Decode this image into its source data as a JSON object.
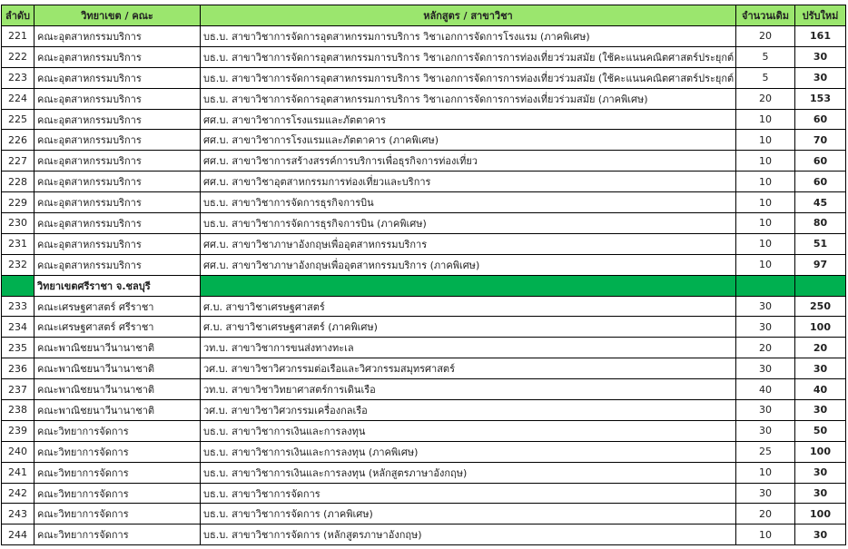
{
  "colors": {
    "header_bg": "#9BE66E",
    "section_bg": "#00B050"
  },
  "headers": [
    "ลำดับ",
    "วิทยาเขต / คณะ",
    "หลักสูตร / สาขาวิชา",
    "จำนวนเดิม",
    "ปรับใหม่"
  ],
  "rows_a": [
    {
      "no": "221",
      "faculty": "คณะอุตสาหกรรมบริการ",
      "program": "บธ.บ. สาขาวิชาการจัดการอุตสาหกรรมการบริการ วิชาเอกการจัดการโรงแรม (ภาคพิเศษ)",
      "old": "20",
      "new": "161"
    },
    {
      "no": "222",
      "faculty": "คณะอุตสาหกรรมบริการ",
      "program": "บธ.บ. สาขาวิชาการจัดการอุตสาหกรรมการบริการ วิชาเอกการจัดการการท่องเที่ยวร่วมสมัย (ใช้คะแนนคณิตศาสตร์ประยุกต์ 1)",
      "old": "5",
      "new": "30"
    },
    {
      "no": "223",
      "faculty": "คณะอุตสาหกรรมบริการ",
      "program": "บธ.บ. สาขาวิชาการจัดการอุตสาหกรรมการบริการ วิชาเอกการจัดการการท่องเที่ยวร่วมสมัย (ใช้คะแนนคณิตศาสตร์ประยุกต์ 2)",
      "old": "5",
      "new": "30"
    },
    {
      "no": "224",
      "faculty": "คณะอุตสาหกรรมบริการ",
      "program": "บธ.บ. สาขาวิชาการจัดการอุตสาหกรรมการบริการ วิชาเอกการจัดการการท่องเที่ยวร่วมสมัย (ภาคพิเศษ)",
      "old": "20",
      "new": "153"
    },
    {
      "no": "225",
      "faculty": "คณะอุตสาหกรรมบริการ",
      "program": "ศศ.บ. สาขาวิชาการโรงแรมและภัตตาคาร",
      "old": "10",
      "new": "60"
    },
    {
      "no": "226",
      "faculty": "คณะอุตสาหกรรมบริการ",
      "program": "ศศ.บ. สาขาวิชาการโรงแรมและภัตตาคาร (ภาคพิเศษ)",
      "old": "10",
      "new": "70"
    },
    {
      "no": "227",
      "faculty": "คณะอุตสาหกรรมบริการ",
      "program": "ศศ.บ. สาขาวิชาการสร้างสรรค์การบริการเพื่อธุรกิจการท่องเที่ยว",
      "old": "10",
      "new": "60"
    },
    {
      "no": "228",
      "faculty": "คณะอุตสาหกรรมบริการ",
      "program": "ศศ.บ. สาขาวิชาอุตสาหกรรมการท่องเที่ยวและบริการ",
      "old": "10",
      "new": "60"
    },
    {
      "no": "229",
      "faculty": "คณะอุตสาหกรรมบริการ",
      "program": "บธ.บ. สาขาวิชาการจัดการธุรกิจการบิน",
      "old": "10",
      "new": "45"
    },
    {
      "no": "230",
      "faculty": "คณะอุตสาหกรรมบริการ",
      "program": "บธ.บ. สาขาวิชาการจัดการธุรกิจการบิน (ภาคพิเศษ)",
      "old": "10",
      "new": "80"
    },
    {
      "no": "231",
      "faculty": "คณะอุตสาหกรรมบริการ",
      "program": "ศศ.บ. สาขาวิชาภาษาอังกฤษเพื่ออุตสาหกรรมบริการ",
      "old": "10",
      "new": "51"
    },
    {
      "no": "232",
      "faculty": "คณะอุตสาหกรรมบริการ",
      "program": "ศศ.บ. สาขาวิชาภาษาอังกฤษเพื่ออุตสาหกรรมบริการ (ภาคพิเศษ)",
      "old": "10",
      "new": "97"
    }
  ],
  "section": {
    "label": "วิทยาเขตศรีราชา จ.ชลบุรี"
  },
  "rows_b": [
    {
      "no": "233",
      "faculty": "คณะเศรษฐศาสตร์ ศรีราชา",
      "program": "ศ.บ. สาขาวิชาเศรษฐศาสตร์",
      "old": "30",
      "new": "250"
    },
    {
      "no": "234",
      "faculty": "คณะเศรษฐศาสตร์ ศรีราชา",
      "program": "ศ.บ. สาขาวิชาเศรษฐศาสตร์ (ภาคพิเศษ)",
      "old": "30",
      "new": "100"
    },
    {
      "no": "235",
      "faculty": "คณะพาณิชยนาวีนานาชาติ",
      "program": "วท.บ. สาขาวิชาการขนส่งทางทะเล",
      "old": "20",
      "new": "20"
    },
    {
      "no": "236",
      "faculty": "คณะพาณิชยนาวีนานาชาติ",
      "program": "วศ.บ. สาขาวิชาวิศวกรรมต่อเรือและวิศวกรรมสมุทรศาสตร์",
      "old": "30",
      "new": "30"
    },
    {
      "no": "237",
      "faculty": "คณะพาณิชยนาวีนานาชาติ",
      "program": "วท.บ. สาขาวิชาวิทยาศาสตร์การเดินเรือ",
      "old": "40",
      "new": "40"
    },
    {
      "no": "238",
      "faculty": "คณะพาณิชยนาวีนานาชาติ",
      "program": "วศ.บ. สาขาวิชาวิศวกรรมเครื่องกลเรือ",
      "old": "30",
      "new": "30"
    },
    {
      "no": "239",
      "faculty": "คณะวิทยาการจัดการ",
      "program": "บธ.บ. สาขาวิชาการเงินและการลงทุน",
      "old": "30",
      "new": "50"
    },
    {
      "no": "240",
      "faculty": "คณะวิทยาการจัดการ",
      "program": "บธ.บ. สาขาวิชาการเงินและการลงทุน (ภาคพิเศษ)",
      "old": "25",
      "new": "100"
    },
    {
      "no": "241",
      "faculty": "คณะวิทยาการจัดการ",
      "program": "บธ.บ. สาขาวิชาการเงินและการลงทุน (หลักสูตรภาษาอังกฤษ)",
      "old": "10",
      "new": "30"
    },
    {
      "no": "242",
      "faculty": "คณะวิทยาการจัดการ",
      "program": "บธ.บ. สาขาวิชาการจัดการ",
      "old": "30",
      "new": "30"
    },
    {
      "no": "243",
      "faculty": "คณะวิทยาการจัดการ",
      "program": "บธ.บ. สาขาวิชาการจัดการ (ภาคพิเศษ)",
      "old": "20",
      "new": "100"
    },
    {
      "no": "244",
      "faculty": "คณะวิทยาการจัดการ",
      "program": "บธ.บ. สาขาวิชาการจัดการ (หลักสูตรภาษาอังกฤษ)",
      "old": "10",
      "new": "30"
    }
  ]
}
